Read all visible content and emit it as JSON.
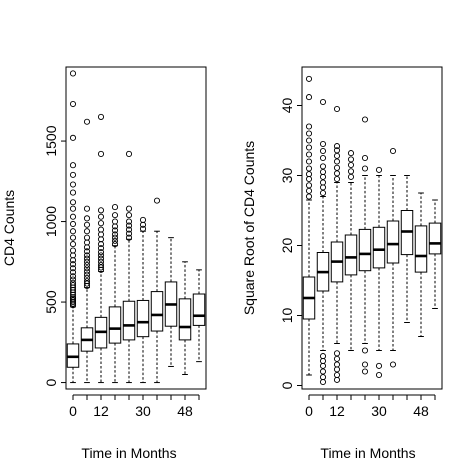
{
  "chart_data": [
    {
      "type": "boxplot",
      "title": "",
      "xlabel": "Time in Months",
      "ylabel": "CD4 Counts",
      "x_tick_labels": [
        "0",
        "12",
        "30",
        "48"
      ],
      "y_ticks": [
        0,
        500,
        1000,
        1500
      ],
      "ylim": [
        -40,
        1960
      ],
      "boxes": [
        {
          "time": 0,
          "min": 0,
          "q1": 95,
          "median": 160,
          "q3": 240,
          "max": 470,
          "outliers": [
            480,
            490,
            500,
            510,
            520,
            530,
            545,
            560,
            575,
            590,
            605,
            620,
            640,
            660,
            685,
            710,
            735,
            760,
            790,
            820,
            860,
            900,
            940,
            985,
            1030,
            1080,
            1120,
            1180,
            1230,
            1290,
            1350,
            1520,
            1730,
            1920
          ]
        },
        {
          "time": 6,
          "min": 0,
          "q1": 195,
          "median": 265,
          "q3": 340,
          "max": 590,
          "outliers": [
            600,
            615,
            630,
            650,
            670,
            690,
            710,
            730,
            750,
            770,
            790,
            815,
            840,
            870,
            900,
            940,
            980,
            1020,
            1080,
            1620
          ]
        },
        {
          "time": 12,
          "min": 0,
          "q1": 215,
          "median": 315,
          "q3": 405,
          "max": 690,
          "outliers": [
            700,
            715,
            730,
            750,
            770,
            790,
            810,
            835,
            860,
            890,
            920,
            950,
            990,
            1030,
            1070,
            1420,
            1650
          ]
        },
        {
          "time": 18,
          "min": 0,
          "q1": 245,
          "median": 335,
          "q3": 470,
          "max": 850,
          "outliers": [
            860,
            880,
            900,
            920,
            945,
            970,
            1000,
            1040,
            1090
          ]
        },
        {
          "time": 24,
          "min": 0,
          "q1": 265,
          "median": 355,
          "q3": 505,
          "max": 890,
          "outliers": [
            900,
            925,
            950,
            975,
            1000,
            1040,
            1080,
            1420
          ]
        },
        {
          "time": 30,
          "min": 0,
          "q1": 285,
          "median": 375,
          "q3": 510,
          "max": 940,
          "outliers": [
            955,
            980,
            1010
          ]
        },
        {
          "time": 36,
          "min": 0,
          "q1": 320,
          "median": 420,
          "q3": 565,
          "max": 940,
          "outliers": [
            1130
          ]
        },
        {
          "time": 42,
          "min": 100,
          "q1": 350,
          "median": 485,
          "q3": 625,
          "max": 900,
          "outliers": []
        },
        {
          "time": 48,
          "min": 50,
          "q1": 265,
          "median": 345,
          "q3": 520,
          "max": 750,
          "outliers": []
        },
        {
          "time": 54,
          "min": 130,
          "q1": 355,
          "median": 415,
          "q3": 550,
          "max": 700,
          "outliers": []
        }
      ]
    },
    {
      "type": "boxplot",
      "title": "",
      "xlabel": "Time in Months",
      "ylabel": "Square Root of CD4 Counts",
      "x_tick_labels": [
        "0",
        "12",
        "30",
        "48"
      ],
      "y_ticks": [
        0,
        10,
        20,
        30,
        40
      ],
      "ylim": [
        -0.5,
        45.5
      ],
      "boxes": [
        {
          "time": 0,
          "min": 1.5,
          "q1": 9.5,
          "median": 12.5,
          "q3": 15.5,
          "max": 26.5,
          "outliers": [
            27,
            27.8,
            28.6,
            29.5,
            30.2,
            31,
            32,
            33,
            34,
            35,
            36,
            37,
            41.2,
            43.8
          ]
        },
        {
          "time": 6,
          "min": 5,
          "q1": 13.5,
          "median": 16.2,
          "q3": 19,
          "max": 27,
          "outliers": [
            0.5,
            1.2,
            2,
            2.8,
            3.5,
            4.2,
            27.5,
            28.3,
            29,
            29.8,
            30.5,
            31.3,
            32.5,
            33.5,
            34.5,
            40.5
          ]
        },
        {
          "time": 12,
          "min": 6,
          "q1": 14.8,
          "median": 17.7,
          "q3": 20.5,
          "max": 29,
          "outliers": [
            0.8,
            1.5,
            2.3,
            3,
            3.8,
            4.6,
            29.5,
            30.3,
            31.1,
            32,
            32.8,
            33.6,
            34.2,
            39.5
          ]
        },
        {
          "time": 18,
          "min": 5,
          "q1": 15.8,
          "median": 18.3,
          "q3": 21.5,
          "max": 29,
          "outliers": [
            29.8,
            30.6,
            31.5,
            32.3,
            33.2
          ]
        },
        {
          "time": 24,
          "min": 6,
          "q1": 16.4,
          "median": 18.8,
          "q3": 22.3,
          "max": 30,
          "outliers": [
            2,
            3,
            5,
            31,
            32.5,
            38
          ]
        },
        {
          "time": 30,
          "min": 5,
          "q1": 16.8,
          "median": 19.4,
          "q3": 22.6,
          "max": 30,
          "outliers": [
            1.5,
            2.8,
            30.8
          ]
        },
        {
          "time": 36,
          "min": 5,
          "q1": 17.5,
          "median": 20.2,
          "q3": 23.5,
          "max": 30,
          "outliers": [
            3,
            33.5
          ]
        },
        {
          "time": 42,
          "min": 9,
          "q1": 18.7,
          "median": 22,
          "q3": 25,
          "max": 30,
          "outliers": []
        },
        {
          "time": 48,
          "min": 7,
          "q1": 16.2,
          "median": 18.5,
          "q3": 22.8,
          "max": 27.5,
          "outliers": []
        },
        {
          "time": 54,
          "min": 11,
          "q1": 18.8,
          "median": 20.3,
          "q3": 23.2,
          "max": 26.5,
          "outliers": []
        }
      ]
    }
  ]
}
